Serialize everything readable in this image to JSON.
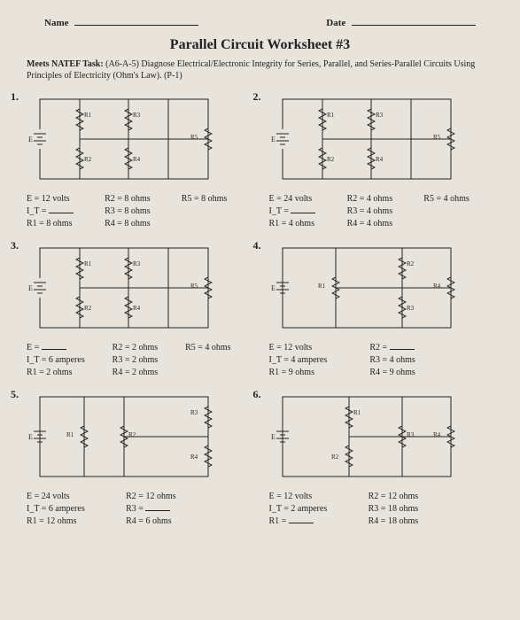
{
  "header": {
    "name_label": "Name",
    "date_label": "Date"
  },
  "title": "Parallel Circuit Worksheet #3",
  "task": {
    "prefix": "Meets NATEF Task:",
    "text": "(A6-A-5) Diagnose Electrical/Electronic Integrity for Series, Parallel, and Series-Parallel Circuits Using Principles of Electricity (Ohm's Law). (P-1)"
  },
  "labels": {
    "E": "E",
    "R1": "R1",
    "R2": "R2",
    "R3": "R3",
    "R4": "R4",
    "R5": "R5"
  },
  "problems": [
    {
      "num": "1.",
      "layout": "five",
      "givens": [
        {
          "k": "E = 12 volts",
          "v": ""
        },
        {
          "k": "R2 = 8 ohms",
          "v": ""
        },
        {
          "k": "R5 = 8 ohms",
          "v": ""
        },
        {
          "k": "I_T =",
          "v": "blank"
        },
        {
          "k": "R3 = 8 ohms",
          "v": ""
        },
        {
          "k": "",
          "v": ""
        },
        {
          "k": "R1 = 8 ohms",
          "v": ""
        },
        {
          "k": "R4 = 8 ohms",
          "v": ""
        },
        {
          "k": "",
          "v": ""
        }
      ]
    },
    {
      "num": "2.",
      "layout": "five",
      "givens": [
        {
          "k": "E = 24 volts",
          "v": ""
        },
        {
          "k": "R2 = 4 ohms",
          "v": ""
        },
        {
          "k": "R5 = 4 ohms",
          "v": ""
        },
        {
          "k": "I_T =",
          "v": "blank"
        },
        {
          "k": "R3 = 4 ohms",
          "v": ""
        },
        {
          "k": "",
          "v": ""
        },
        {
          "k": "R1 = 4 ohms",
          "v": ""
        },
        {
          "k": "R4 = 4 ohms",
          "v": ""
        },
        {
          "k": "",
          "v": ""
        }
      ]
    },
    {
      "num": "3.",
      "layout": "five",
      "givens": [
        {
          "k": "E =",
          "v": "blank"
        },
        {
          "k": "R2 = 2 ohms",
          "v": ""
        },
        {
          "k": "R5 = 4 ohms",
          "v": ""
        },
        {
          "k": "I_T = 6 amperes",
          "v": ""
        },
        {
          "k": "R3 = 2 ohms",
          "v": ""
        },
        {
          "k": "",
          "v": ""
        },
        {
          "k": "R1 = 2 ohms",
          "v": ""
        },
        {
          "k": "R4 = 2 ohms",
          "v": ""
        },
        {
          "k": "",
          "v": ""
        }
      ]
    },
    {
      "num": "4.",
      "layout": "four",
      "givens": [
        {
          "k": "E = 12 volts",
          "v": ""
        },
        {
          "k": "R2 =",
          "v": "blank"
        },
        {
          "k": "",
          "v": ""
        },
        {
          "k": "I_T = 4 amperes",
          "v": ""
        },
        {
          "k": "R3 = 4 ohms",
          "v": ""
        },
        {
          "k": "",
          "v": ""
        },
        {
          "k": "R1 = 9 ohms",
          "v": ""
        },
        {
          "k": "R4 = 9 ohms",
          "v": ""
        },
        {
          "k": "",
          "v": ""
        }
      ]
    },
    {
      "num": "5.",
      "layout": "four-b",
      "givens": [
        {
          "k": "E = 24 volts",
          "v": ""
        },
        {
          "k": "R2 = 12 ohms",
          "v": ""
        },
        {
          "k": "",
          "v": ""
        },
        {
          "k": "I_T = 6 amperes",
          "v": ""
        },
        {
          "k": "R3 =",
          "v": "blank"
        },
        {
          "k": "",
          "v": ""
        },
        {
          "k": "R1 = 12 ohms",
          "v": ""
        },
        {
          "k": "R4 = 6 ohms",
          "v": ""
        },
        {
          "k": "",
          "v": ""
        }
      ]
    },
    {
      "num": "6.",
      "layout": "four-c",
      "givens": [
        {
          "k": "E = 12 volts",
          "v": ""
        },
        {
          "k": "R2 = 12 ohms",
          "v": ""
        },
        {
          "k": "",
          "v": ""
        },
        {
          "k": "I_T = 2 amperes",
          "v": ""
        },
        {
          "k": "R3 = 18 ohms",
          "v": ""
        },
        {
          "k": "",
          "v": ""
        },
        {
          "k": "R1 =",
          "v": "blank"
        },
        {
          "k": "R4 = 18 ohms",
          "v": ""
        },
        {
          "k": "",
          "v": ""
        }
      ]
    }
  ]
}
